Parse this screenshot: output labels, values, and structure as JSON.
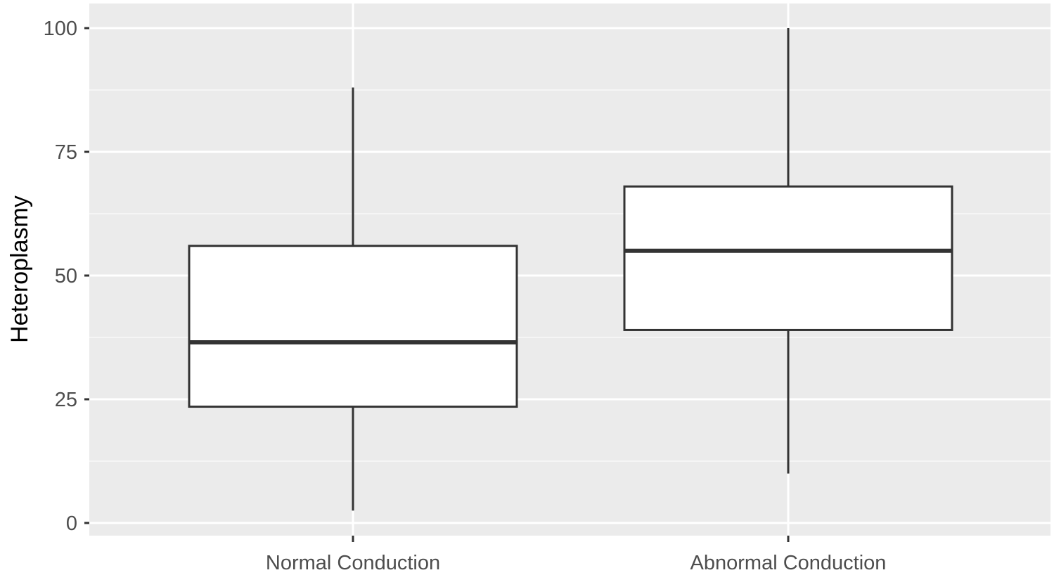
{
  "chart_data": {
    "type": "boxplot",
    "title": "",
    "xlabel": "",
    "ylabel": "Heteroplasmy",
    "ylim": [
      -5,
      105
    ],
    "yticks": [
      0,
      25,
      50,
      75,
      100
    ],
    "ytick_labels": [
      "0",
      "25",
      "50",
      "75",
      "100"
    ],
    "categories": [
      "Normal Conduction",
      "Abnormal Conduction"
    ],
    "boxes": [
      {
        "category": "Normal Conduction",
        "whisker_low": 2.5,
        "q1": 23.5,
        "median": 36.5,
        "q3": 56,
        "whisker_high": 88
      },
      {
        "category": "Abnormal Conduction",
        "whisker_low": 10,
        "q1": 39,
        "median": 55,
        "q3": 68,
        "whisker_high": 100
      }
    ],
    "grid": true,
    "legend": "none",
    "colors": {
      "panel_background": "#ebebeb",
      "grid_major": "#ffffff",
      "grid_minor": "#f5f5f5",
      "box_fill": "#ffffff",
      "box_line": "#333333",
      "axis_ticks": "#333333"
    }
  }
}
